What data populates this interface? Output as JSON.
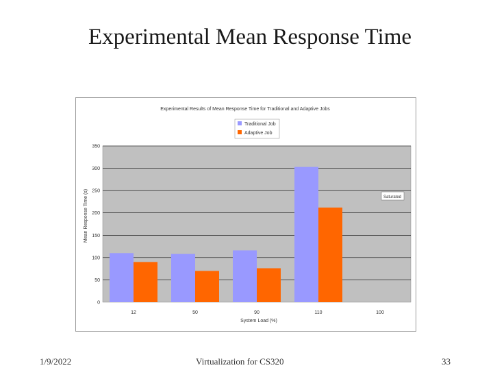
{
  "slide": {
    "title": "Experimental Mean Response Time",
    "footer_date": "1/9/2022",
    "footer_center": "Virtualization for CS320",
    "footer_page": "33"
  },
  "colors": {
    "series_traditional": "#9999ff",
    "series_adaptive": "#ff6600",
    "plot_bg": "#c0c0c0"
  },
  "chart_data": {
    "type": "bar",
    "title": "Experimental Results of Mean Response Time for Traditional and Adaptive Jobs",
    "xlabel": "System Load (%)",
    "ylabel": "Mean Response Time (s)",
    "ylim": [
      0,
      350
    ],
    "yticks": [
      0,
      50,
      100,
      150,
      200,
      250,
      300,
      350
    ],
    "categories": [
      "12",
      "50",
      "90",
      "110",
      "100"
    ],
    "series": [
      {
        "name": "Traditional Job",
        "values": [
          110,
          108,
          116,
          303,
          null
        ]
      },
      {
        "name": "Adaptive Job",
        "values": [
          90,
          70,
          76,
          212,
          null
        ]
      }
    ],
    "annotation": "Saturated",
    "legend_position": "top-center"
  }
}
